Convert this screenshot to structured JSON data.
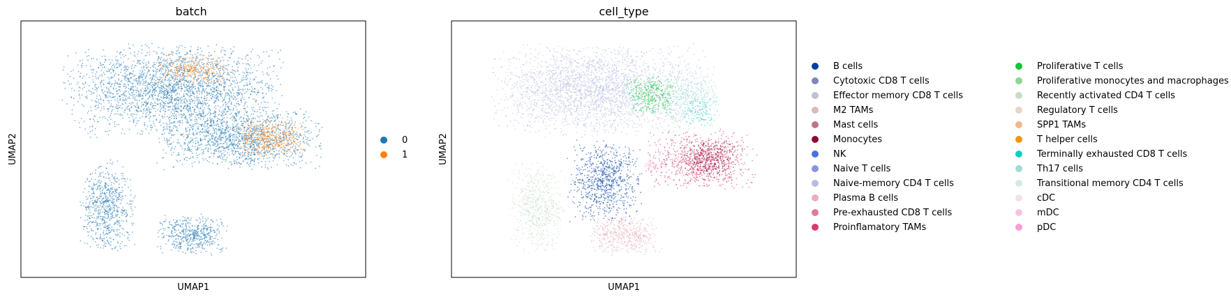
{
  "chart_data": [
    {
      "type": "scatter",
      "title": "batch",
      "xlabel": "UMAP1",
      "ylabel": "UMAP2",
      "grid": false,
      "ticks": "none",
      "legend_position": "right",
      "legend": [
        {
          "label": "0",
          "color": "#1f77b4"
        },
        {
          "label": "1",
          "color": "#ff7f0e"
        }
      ],
      "regions": [
        {
          "name": "upper-arc",
          "color": "#1f77b4",
          "x": [
            -3,
            9
          ],
          "y": [
            2,
            11
          ],
          "n": 2600
        },
        {
          "name": "upper-arc-batch1",
          "color": "#ff7f0e",
          "x": [
            2,
            6
          ],
          "y": [
            7,
            10
          ],
          "n": 260
        },
        {
          "name": "middle-lobes",
          "color": "#1f77b4",
          "x": [
            2,
            11
          ],
          "y": [
            -1,
            5
          ],
          "n": 1400
        },
        {
          "name": "middle-lobes-batch1",
          "color": "#ff7f0e",
          "x": [
            6,
            10
          ],
          "y": [
            0,
            4
          ],
          "n": 420
        },
        {
          "name": "left-tail",
          "color": "#1f77b4",
          "x": [
            -2,
            1
          ],
          "y": [
            -9,
            0
          ],
          "n": 700
        },
        {
          "name": "bottom-lobe",
          "color": "#1f77b4",
          "x": [
            2,
            6
          ],
          "y": [
            -9,
            -5
          ],
          "n": 500
        }
      ]
    },
    {
      "type": "scatter",
      "title": "cell_type",
      "xlabel": "UMAP1",
      "ylabel": "UMAP2",
      "grid": false,
      "ticks": "none",
      "legend_position": "right",
      "legend": [
        {
          "label": "B cells",
          "color": "#023fa5"
        },
        {
          "label": "Cytotoxic CD8 T cells",
          "color": "#7d87b9"
        },
        {
          "label": "Effector memory CD8 T cells",
          "color": "#bec1d4"
        },
        {
          "label": "M2 TAMs",
          "color": "#d6bcc0"
        },
        {
          "label": "Mast cells",
          "color": "#bb7784"
        },
        {
          "label": "Monocytes",
          "color": "#8e063b"
        },
        {
          "label": "NK",
          "color": "#4a6fe3"
        },
        {
          "label": "Naive T cells",
          "color": "#8595e1"
        },
        {
          "label": "Naive-memory CD4 T cells",
          "color": "#b5bbe3"
        },
        {
          "label": "Plasma B cells",
          "color": "#e6afb9"
        },
        {
          "label": "Pre-exhausted CD8 T cells",
          "color": "#e07b91"
        },
        {
          "label": "Proinflamatory TAMs",
          "color": "#d33f6a"
        },
        {
          "label": "Proliferative T cells",
          "color": "#11c638"
        },
        {
          "label": "Proliferative monocytes and macrophages",
          "color": "#8dd593"
        },
        {
          "label": "Recently activated CD4 T cells",
          "color": "#c6dec7"
        },
        {
          "label": "Regulatory T cells",
          "color": "#ead3c6"
        },
        {
          "label": "SPP1 TAMs",
          "color": "#f0b98d"
        },
        {
          "label": "T helper cells",
          "color": "#ef9708"
        },
        {
          "label": "Terminally exhausted CD8 T cells",
          "color": "#0fcfc0"
        },
        {
          "label": "Th17 cells",
          "color": "#9cded6"
        },
        {
          "label": "Transitional memory CD4 T cells",
          "color": "#d5eae7"
        },
        {
          "label": "cDC",
          "color": "#f3e1eb"
        },
        {
          "label": "mDC",
          "color": "#f6c4e1"
        },
        {
          "label": "pDC",
          "color": "#f79cd4"
        }
      ],
      "regions": [
        {
          "name": "upper-arc",
          "color": "#b5bbe3",
          "x": [
            -3,
            9
          ],
          "y": [
            2,
            11
          ],
          "n": 2200
        },
        {
          "name": "upper-arc-effector",
          "color": "#bec1d4",
          "x": [
            -3,
            5
          ],
          "y": [
            3,
            10
          ],
          "n": 500
        },
        {
          "name": "proliferative-t",
          "color": "#11c638",
          "x": [
            4,
            7
          ],
          "y": [
            4,
            8
          ],
          "n": 320
        },
        {
          "name": "th17-right",
          "color": "#9cded6",
          "x": [
            6,
            9
          ],
          "y": [
            3,
            9
          ],
          "n": 320
        },
        {
          "name": "terminally-exhausted",
          "color": "#0fcfc0",
          "x": [
            7,
            9
          ],
          "y": [
            3,
            6
          ],
          "n": 90
        },
        {
          "name": "b-cells",
          "color": "#023fa5",
          "x": [
            1,
            5
          ],
          "y": [
            -6,
            2
          ],
          "n": 800
        },
        {
          "name": "proinflammatory-tams",
          "color": "#d33f6a",
          "x": [
            5,
            11
          ],
          "y": [
            -3,
            3
          ],
          "n": 800
        },
        {
          "name": "monocytes",
          "color": "#8e063b",
          "x": [
            7,
            10
          ],
          "y": [
            -2,
            2
          ],
          "n": 300
        },
        {
          "name": "plasma-b",
          "color": "#e6afb9",
          "x": [
            2,
            6
          ],
          "y": [
            -9,
            -5
          ],
          "n": 500
        },
        {
          "name": "mdc-spot",
          "color": "#f6c4e1",
          "x": [
            5,
            6
          ],
          "y": [
            -1,
            0
          ],
          "n": 60
        },
        {
          "name": "left-tail",
          "color": "#c6dec7",
          "x": [
            -2,
            1
          ],
          "y": [
            -9,
            0
          ],
          "n": 600
        }
      ]
    }
  ]
}
